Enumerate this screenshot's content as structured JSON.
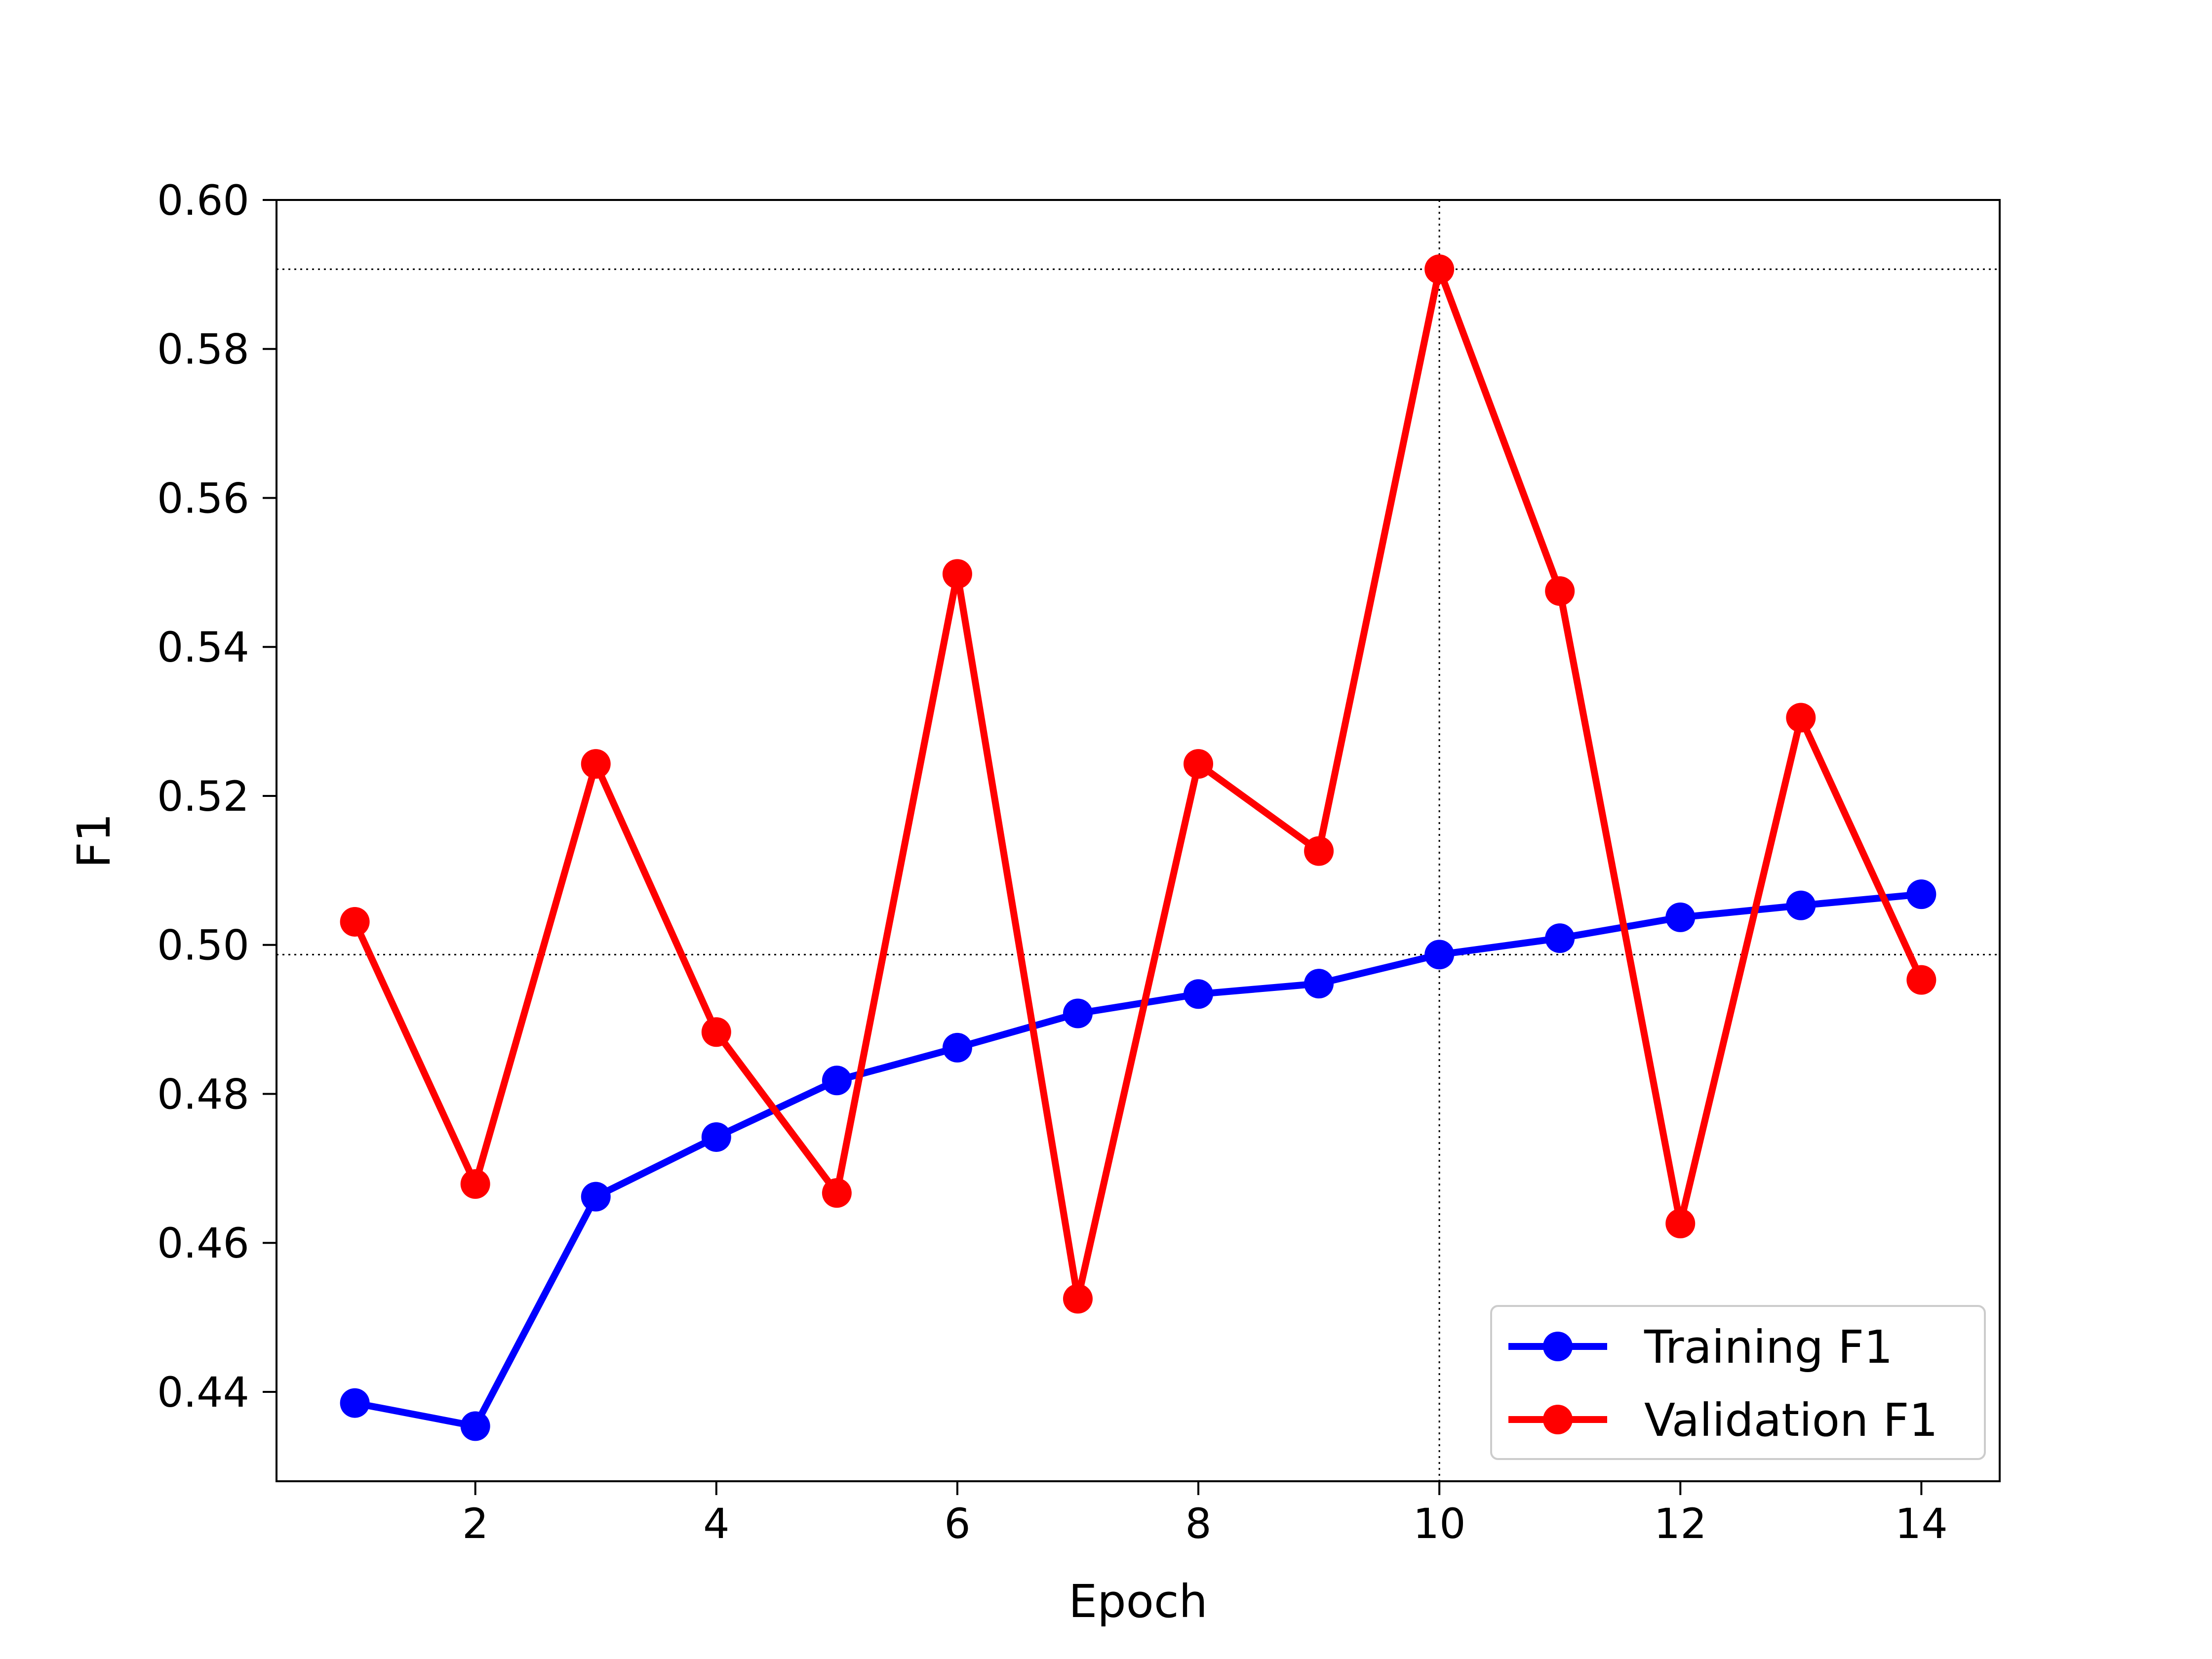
{
  "chart_data": {
    "type": "line",
    "title": "",
    "xlabel": "Epoch",
    "ylabel": "F1",
    "xlim": [
      0.35,
      14.65
    ],
    "ylim": [
      0.428,
      0.6
    ],
    "x_ticks": [
      2,
      4,
      6,
      8,
      10,
      12,
      14
    ],
    "x_tick_labels": [
      "2",
      "4",
      "6",
      "8",
      "10",
      "12",
      "14"
    ],
    "y_ticks": [
      0.44,
      0.46,
      0.48,
      0.5,
      0.52,
      0.54,
      0.56,
      0.58,
      0.6
    ],
    "y_tick_labels": [
      "0.44",
      "0.46",
      "0.48",
      "0.50",
      "0.52",
      "0.54",
      "0.56",
      "0.58",
      "0.60"
    ],
    "grid": false,
    "legend_position": "lower-right",
    "x": [
      1,
      2,
      3,
      4,
      5,
      6,
      7,
      8,
      9,
      10,
      11,
      12,
      13,
      14
    ],
    "series": [
      {
        "name": "Training F1",
        "color": "#0000ff",
        "marker": "circle",
        "values": [
          0.4385,
          0.4354,
          0.4662,
          0.4742,
          0.4818,
          0.4862,
          0.4908,
          0.4934,
          0.4948,
          0.4987,
          0.5009,
          0.5037,
          0.5053,
          0.5068
        ]
      },
      {
        "name": "Validation F1",
        "color": "#ff0000",
        "marker": "circle",
        "values": [
          0.5031,
          0.4679,
          0.5243,
          0.4883,
          0.4667,
          0.5498,
          0.4525,
          0.5243,
          0.5126,
          0.5907,
          0.5475,
          0.4626,
          0.5305,
          0.4953
        ]
      }
    ],
    "reference_lines": {
      "color": "#000000",
      "style": "dotted",
      "vertical_x": 10,
      "horizontal_y": [
        0.5907,
        0.4987
      ]
    }
  }
}
